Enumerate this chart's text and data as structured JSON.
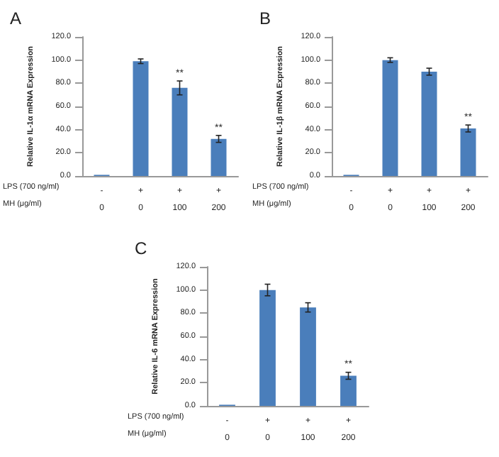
{
  "chart_data": [
    {
      "type": "bar",
      "title": "A",
      "ylabel": "Relative IL-1α mRNA Expression",
      "categories": [
        "-\n0",
        "+\n0",
        "+\n100",
        "+\n200"
      ],
      "values": [
        1,
        99,
        76,
        32
      ],
      "errors": [
        null,
        2,
        6,
        3
      ],
      "color": "#4a7ebb",
      "ylim": [
        0,
        120
      ],
      "yticks": [
        {
          "value": 0,
          "label": "0.0"
        },
        {
          "value": 20,
          "label": "20.0"
        },
        {
          "value": 40,
          "label": "40.0"
        },
        {
          "value": 60,
          "label": "60.0"
        },
        {
          "value": 80,
          "label": "80.0"
        },
        {
          "value": 100,
          "label": "100.0"
        },
        {
          "value": 120,
          "label": "120.0"
        }
      ],
      "grid": false,
      "annotations": [
        "LPS (700 ng/ml)",
        "MH (μg/ml)",
        {
          "text": "**",
          "x": "+\n100",
          "y": 84
        },
        {
          "text": "**",
          "x": "+\n200",
          "y": 37
        }
      ]
    },
    {
      "type": "bar",
      "title": "B",
      "ylabel": "Relative IL-1β mRNA Expression",
      "categories": [
        "-\n0",
        "+\n0",
        "+\n100",
        "+\n200"
      ],
      "values": [
        1,
        100,
        90,
        41
      ],
      "errors": [
        null,
        2,
        3,
        3
      ],
      "color": "#4a7ebb",
      "ylim": [
        0,
        120
      ],
      "yticks": [
        {
          "value": 0,
          "label": "0.0"
        },
        {
          "value": 20,
          "label": "20.0"
        },
        {
          "value": 40,
          "label": "40.0"
        },
        {
          "value": 60,
          "label": "60.0"
        },
        {
          "value": 80,
          "label": "80.0"
        },
        {
          "value": 100,
          "label": "100.0"
        },
        {
          "value": 120,
          "label": "120.0"
        }
      ],
      "grid": false,
      "annotations": [
        "LPS (700 ng/ml)",
        "MH (μg/ml)",
        {
          "text": "**",
          "x": "+\n200",
          "y": 46
        }
      ]
    },
    {
      "type": "bar",
      "title": "C",
      "ylabel": "Relative IL-6 mRNA Expression",
      "categories": [
        "-\n0",
        "+\n0",
        "+\n100",
        "+\n200"
      ],
      "values": [
        1,
        100,
        85,
        26
      ],
      "errors": [
        null,
        5,
        4,
        3
      ],
      "color": "#4a7ebb",
      "ylim": [
        0,
        120
      ],
      "yticks": [
        {
          "value": 0,
          "label": "0.0"
        },
        {
          "value": 20,
          "label": "20.0"
        },
        {
          "value": 40,
          "label": "40.0"
        },
        {
          "value": 60,
          "label": "60.0"
        },
        {
          "value": 80,
          "label": "80.0"
        },
        {
          "value": 100,
          "label": "100.0"
        },
        {
          "value": 120,
          "label": "120.0"
        }
      ],
      "grid": false,
      "annotations": [
        "LPS (700 ng/ml)",
        "MH (μg/ml)",
        {
          "text": "**",
          "x": "+\n200",
          "y": 31
        }
      ]
    }
  ]
}
